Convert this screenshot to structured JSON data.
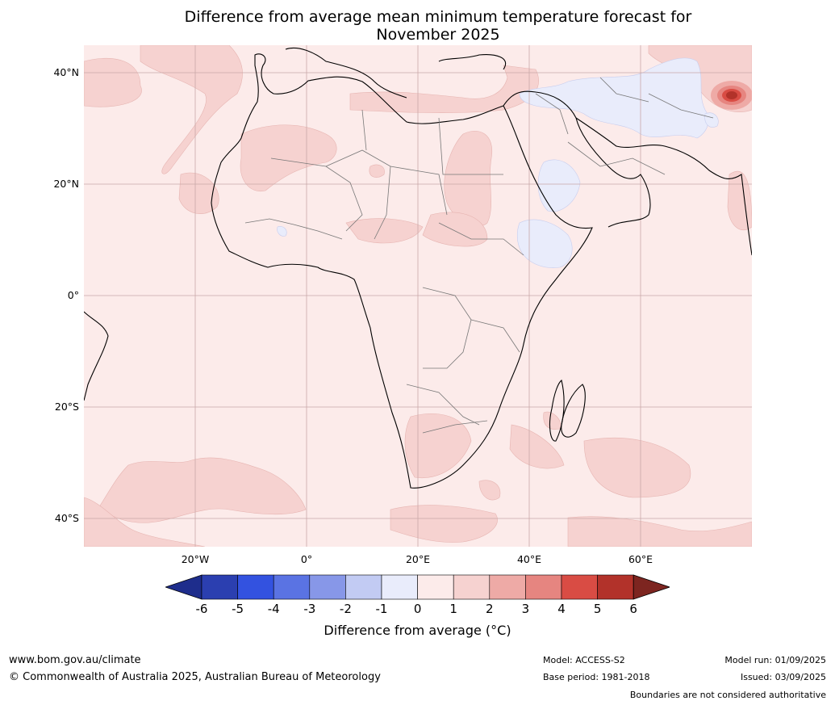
{
  "title_line1": "Difference from average mean minimum temperature forecast for",
  "title_line2": "November 2025",
  "lat_labels": [
    "40°N",
    "20°N",
    "0°",
    "20°S",
    "40°S"
  ],
  "lon_labels": [
    "20°W",
    "0°",
    "20°E",
    "40°E",
    "60°E"
  ],
  "legend": {
    "ticks": [
      "-6",
      "-5",
      "-4",
      "-3",
      "-2",
      "-1",
      "0",
      "1",
      "2",
      "3",
      "4",
      "5",
      "6"
    ],
    "colors": [
      "#1e2d8c",
      "#2b3fb0",
      "#3352e0",
      "#5a73e3",
      "#8797e8",
      "#c2cbf3",
      "#e9ecfb",
      "#fcebea",
      "#f6d2d0",
      "#eeaaa6",
      "#e68580",
      "#d94c44",
      "#b2322a",
      "#7d2520"
    ],
    "label": "Difference from average (°C)"
  },
  "footer": {
    "website": "www.bom.gov.au/climate",
    "copyright": "© Commonwealth of Australia 2025, Australian Bureau of Meteorology",
    "model": "Model: ACCESS-S2",
    "base_period": "Base period: 1981-2018",
    "model_run": "Model run: 01/09/2025",
    "issued": "Issued: 03/09/2025",
    "disclaimer": "Boundaries are not considered authoritative"
  }
}
